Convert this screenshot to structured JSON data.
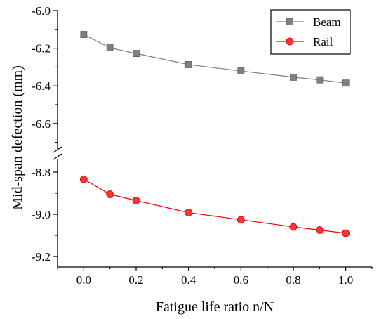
{
  "chart_data": {
    "type": "line",
    "xlabel": "Fatigue life ratio n/N",
    "ylabel": "Mid-span defection (mm)",
    "x": [
      0.0,
      0.1,
      0.2,
      0.4,
      0.6,
      0.8,
      0.9,
      1.0
    ],
    "xlim": [
      -0.1,
      1.1
    ],
    "x_ticks": [
      "0.0",
      "0.2",
      "0.4",
      "0.6",
      "0.8",
      "1.0"
    ],
    "y_axis_break": true,
    "y_segments": [
      {
        "range": [
          -6.72,
          -6.0
        ],
        "ticks": [
          "-6.0",
          "-6.2",
          "-6.4",
          "-6.6"
        ]
      },
      {
        "range": [
          -9.25,
          -8.75
        ],
        "ticks": [
          "-8.8",
          "-9.0",
          "-9.2"
        ]
      }
    ],
    "legend_position": "top-right",
    "series": [
      {
        "name": "Beam",
        "color": "#808080",
        "marker": "square",
        "values": [
          -6.127,
          -6.198,
          -6.228,
          -6.287,
          -6.321,
          -6.354,
          -6.368,
          -6.385
        ]
      },
      {
        "name": "Rail",
        "color": "#ff0000",
        "marker": "circle",
        "values": [
          -8.834,
          -8.905,
          -8.935,
          -8.992,
          -9.026,
          -9.06,
          -9.075,
          -9.09
        ]
      }
    ]
  }
}
